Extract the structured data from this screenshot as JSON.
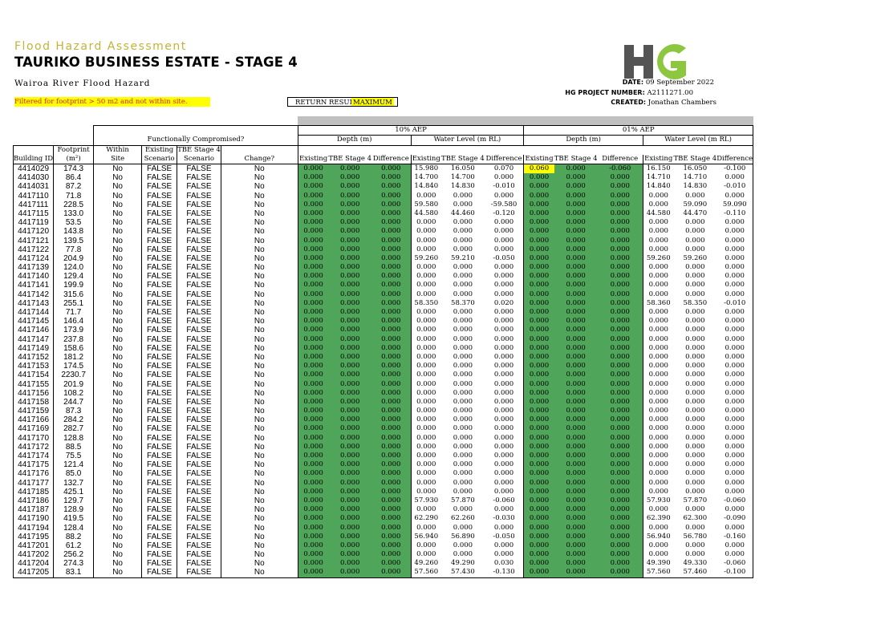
{
  "header": {
    "subtitle": "Flood Hazard Assessment",
    "title": "TAURIKO BUSINESS ESTATE - STAGE 4",
    "river": "Wairoa River Flood Hazard",
    "filter_note": "Filtered for footprint > 50 m2 and not within site.",
    "return_result_label": "RETURN RESULT",
    "return_result_value": "MAXIMUM"
  },
  "meta": {
    "date_label": "DATE:",
    "date_value": "09 September 2022",
    "project_label": "HG PROJECT NUMBER:",
    "project_value": "A2111271.00",
    "created_label": "CREATED:",
    "created_value": "Jonathan Chambers"
  },
  "logo": {
    "text": "HG",
    "colors": {
      "h": "#555555",
      "g": "#8dc63f"
    }
  },
  "colors": {
    "accent_green": "#4fa65a",
    "highlight_yellow": "#ffff00",
    "band_grey": "#c0c0c0",
    "filter_text_red": "#e02020",
    "subtitle_gold": "#c4b23a"
  },
  "table": {
    "aep_10": "10% AEP",
    "aep_1": "01% AEP",
    "func_comp": "Functionally Compromised?",
    "depth": "Depth (m)",
    "wl": "Water Level (m RL)",
    "col": {
      "building_id": "Building ID",
      "footprint_1": "Footprint",
      "footprint_2": "(m²)",
      "within_1": "Within",
      "within_2": "Site",
      "existing_1": "Existing",
      "existing_2": "Scenario",
      "tbe_1": "TBE Stage 4",
      "tbe_2": "Scenario",
      "change": "Change?",
      "existing": "Existing",
      "tbe": "TBE Stage 4",
      "difference": "Difference"
    },
    "rows": [
      [
        "4414029",
        "174.3",
        "No",
        "FALSE",
        "FALSE",
        "No",
        "0.000",
        "0.000",
        "0.000",
        "15.980",
        "16.050",
        "0.070",
        "0.060",
        "0.000",
        "-0.060",
        "16.150",
        "16.050",
        "-0.100"
      ],
      [
        "4414030",
        "86.4",
        "No",
        "FALSE",
        "FALSE",
        "No",
        "0.000",
        "0.000",
        "0.000",
        "14.700",
        "14.700",
        "0.000",
        "0.000",
        "0.000",
        "0.000",
        "14.710",
        "14.710",
        "0.000"
      ],
      [
        "4414031",
        "87.2",
        "No",
        "FALSE",
        "FALSE",
        "No",
        "0.000",
        "0.000",
        "0.000",
        "14.840",
        "14.830",
        "-0.010",
        "0.000",
        "0.000",
        "0.000",
        "14.840",
        "14.830",
        "-0.010"
      ],
      [
        "4417110",
        "71.8",
        "No",
        "FALSE",
        "FALSE",
        "No",
        "0.000",
        "0.000",
        "0.000",
        "0.000",
        "0.000",
        "0.000",
        "0.000",
        "0.000",
        "0.000",
        "0.000",
        "0.000",
        "0.000"
      ],
      [
        "4417111",
        "228.5",
        "No",
        "FALSE",
        "FALSE",
        "No",
        "0.000",
        "0.000",
        "0.000",
        "59.580",
        "0.000",
        "-59.580",
        "0.000",
        "0.000",
        "0.000",
        "0.000",
        "59.090",
        "59.090"
      ],
      [
        "4417115",
        "133.0",
        "No",
        "FALSE",
        "FALSE",
        "No",
        "0.000",
        "0.000",
        "0.000",
        "44.580",
        "44.460",
        "-0.120",
        "0.000",
        "0.000",
        "0.000",
        "44.580",
        "44.470",
        "-0.110"
      ],
      [
        "4417119",
        "53.5",
        "No",
        "FALSE",
        "FALSE",
        "No",
        "0.000",
        "0.000",
        "0.000",
        "0.000",
        "0.000",
        "0.000",
        "0.000",
        "0.000",
        "0.000",
        "0.000",
        "0.000",
        "0.000"
      ],
      [
        "4417120",
        "143.8",
        "No",
        "FALSE",
        "FALSE",
        "No",
        "0.000",
        "0.000",
        "0.000",
        "0.000",
        "0.000",
        "0.000",
        "0.000",
        "0.000",
        "0.000",
        "0.000",
        "0.000",
        "0.000"
      ],
      [
        "4417121",
        "139.5",
        "No",
        "FALSE",
        "FALSE",
        "No",
        "0.000",
        "0.000",
        "0.000",
        "0.000",
        "0.000",
        "0.000",
        "0.000",
        "0.000",
        "0.000",
        "0.000",
        "0.000",
        "0.000"
      ],
      [
        "4417122",
        "77.8",
        "No",
        "FALSE",
        "FALSE",
        "No",
        "0.000",
        "0.000",
        "0.000",
        "0.000",
        "0.000",
        "0.000",
        "0.000",
        "0.000",
        "0.000",
        "0.000",
        "0.000",
        "0.000"
      ],
      [
        "4417124",
        "204.9",
        "No",
        "FALSE",
        "FALSE",
        "No",
        "0.000",
        "0.000",
        "0.000",
        "59.260",
        "59.210",
        "-0.050",
        "0.000",
        "0.000",
        "0.000",
        "59.260",
        "59.260",
        "0.000"
      ],
      [
        "4417139",
        "124.0",
        "No",
        "FALSE",
        "FALSE",
        "No",
        "0.000",
        "0.000",
        "0.000",
        "0.000",
        "0.000",
        "0.000",
        "0.000",
        "0.000",
        "0.000",
        "0.000",
        "0.000",
        "0.000"
      ],
      [
        "4417140",
        "129.4",
        "No",
        "FALSE",
        "FALSE",
        "No",
        "0.000",
        "0.000",
        "0.000",
        "0.000",
        "0.000",
        "0.000",
        "0.000",
        "0.000",
        "0.000",
        "0.000",
        "0.000",
        "0.000"
      ],
      [
        "4417141",
        "199.9",
        "No",
        "FALSE",
        "FALSE",
        "No",
        "0.000",
        "0.000",
        "0.000",
        "0.000",
        "0.000",
        "0.000",
        "0.000",
        "0.000",
        "0.000",
        "0.000",
        "0.000",
        "0.000"
      ],
      [
        "4417142",
        "315.6",
        "No",
        "FALSE",
        "FALSE",
        "No",
        "0.000",
        "0.000",
        "0.000",
        "0.000",
        "0.000",
        "0.000",
        "0.000",
        "0.000",
        "0.000",
        "0.000",
        "0.000",
        "0.000"
      ],
      [
        "4417143",
        "255.1",
        "No",
        "FALSE",
        "FALSE",
        "No",
        "0.000",
        "0.000",
        "0.000",
        "58.350",
        "58.370",
        "0.020",
        "0.000",
        "0.000",
        "0.000",
        "58.360",
        "58.350",
        "-0.010"
      ],
      [
        "4417144",
        "71.7",
        "No",
        "FALSE",
        "FALSE",
        "No",
        "0.000",
        "0.000",
        "0.000",
        "0.000",
        "0.000",
        "0.000",
        "0.000",
        "0.000",
        "0.000",
        "0.000",
        "0.000",
        "0.000"
      ],
      [
        "4417145",
        "146.4",
        "No",
        "FALSE",
        "FALSE",
        "No",
        "0.000",
        "0.000",
        "0.000",
        "0.000",
        "0.000",
        "0.000",
        "0.000",
        "0.000",
        "0.000",
        "0.000",
        "0.000",
        "0.000"
      ],
      [
        "4417146",
        "173.9",
        "No",
        "FALSE",
        "FALSE",
        "No",
        "0.000",
        "0.000",
        "0.000",
        "0.000",
        "0.000",
        "0.000",
        "0.000",
        "0.000",
        "0.000",
        "0.000",
        "0.000",
        "0.000"
      ],
      [
        "4417147",
        "237.8",
        "No",
        "FALSE",
        "FALSE",
        "No",
        "0.000",
        "0.000",
        "0.000",
        "0.000",
        "0.000",
        "0.000",
        "0.000",
        "0.000",
        "0.000",
        "0.000",
        "0.000",
        "0.000"
      ],
      [
        "4417149",
        "158.6",
        "No",
        "FALSE",
        "FALSE",
        "No",
        "0.000",
        "0.000",
        "0.000",
        "0.000",
        "0.000",
        "0.000",
        "0.000",
        "0.000",
        "0.000",
        "0.000",
        "0.000",
        "0.000"
      ],
      [
        "4417152",
        "181.2",
        "No",
        "FALSE",
        "FALSE",
        "No",
        "0.000",
        "0.000",
        "0.000",
        "0.000",
        "0.000",
        "0.000",
        "0.000",
        "0.000",
        "0.000",
        "0.000",
        "0.000",
        "0.000"
      ],
      [
        "4417153",
        "174.5",
        "No",
        "FALSE",
        "FALSE",
        "No",
        "0.000",
        "0.000",
        "0.000",
        "0.000",
        "0.000",
        "0.000",
        "0.000",
        "0.000",
        "0.000",
        "0.000",
        "0.000",
        "0.000"
      ],
      [
        "4417154",
        "2230.7",
        "No",
        "FALSE",
        "FALSE",
        "No",
        "0.000",
        "0.000",
        "0.000",
        "0.000",
        "0.000",
        "0.000",
        "0.000",
        "0.000",
        "0.000",
        "0.000",
        "0.000",
        "0.000"
      ],
      [
        "4417155",
        "201.9",
        "No",
        "FALSE",
        "FALSE",
        "No",
        "0.000",
        "0.000",
        "0.000",
        "0.000",
        "0.000",
        "0.000",
        "0.000",
        "0.000",
        "0.000",
        "0.000",
        "0.000",
        "0.000"
      ],
      [
        "4417156",
        "108.2",
        "No",
        "FALSE",
        "FALSE",
        "No",
        "0.000",
        "0.000",
        "0.000",
        "0.000",
        "0.000",
        "0.000",
        "0.000",
        "0.000",
        "0.000",
        "0.000",
        "0.000",
        "0.000"
      ],
      [
        "4417158",
        "244.7",
        "No",
        "FALSE",
        "FALSE",
        "No",
        "0.000",
        "0.000",
        "0.000",
        "0.000",
        "0.000",
        "0.000",
        "0.000",
        "0.000",
        "0.000",
        "0.000",
        "0.000",
        "0.000"
      ],
      [
        "4417159",
        "87.3",
        "No",
        "FALSE",
        "FALSE",
        "No",
        "0.000",
        "0.000",
        "0.000",
        "0.000",
        "0.000",
        "0.000",
        "0.000",
        "0.000",
        "0.000",
        "0.000",
        "0.000",
        "0.000"
      ],
      [
        "4417166",
        "284.2",
        "No",
        "FALSE",
        "FALSE",
        "No",
        "0.000",
        "0.000",
        "0.000",
        "0.000",
        "0.000",
        "0.000",
        "0.000",
        "0.000",
        "0.000",
        "0.000",
        "0.000",
        "0.000"
      ],
      [
        "4417169",
        "282.7",
        "No",
        "FALSE",
        "FALSE",
        "No",
        "0.000",
        "0.000",
        "0.000",
        "0.000",
        "0.000",
        "0.000",
        "0.000",
        "0.000",
        "0.000",
        "0.000",
        "0.000",
        "0.000"
      ],
      [
        "4417170",
        "128.8",
        "No",
        "FALSE",
        "FALSE",
        "No",
        "0.000",
        "0.000",
        "0.000",
        "0.000",
        "0.000",
        "0.000",
        "0.000",
        "0.000",
        "0.000",
        "0.000",
        "0.000",
        "0.000"
      ],
      [
        "4417172",
        "88.5",
        "No",
        "FALSE",
        "FALSE",
        "No",
        "0.000",
        "0.000",
        "0.000",
        "0.000",
        "0.000",
        "0.000",
        "0.000",
        "0.000",
        "0.000",
        "0.000",
        "0.000",
        "0.000"
      ],
      [
        "4417174",
        "75.5",
        "No",
        "FALSE",
        "FALSE",
        "No",
        "0.000",
        "0.000",
        "0.000",
        "0.000",
        "0.000",
        "0.000",
        "0.000",
        "0.000",
        "0.000",
        "0.000",
        "0.000",
        "0.000"
      ],
      [
        "4417175",
        "121.4",
        "No",
        "FALSE",
        "FALSE",
        "No",
        "0.000",
        "0.000",
        "0.000",
        "0.000",
        "0.000",
        "0.000",
        "0.000",
        "0.000",
        "0.000",
        "0.000",
        "0.000",
        "0.000"
      ],
      [
        "4417176",
        "85.0",
        "No",
        "FALSE",
        "FALSE",
        "No",
        "0.000",
        "0.000",
        "0.000",
        "0.000",
        "0.000",
        "0.000",
        "0.000",
        "0.000",
        "0.000",
        "0.000",
        "0.000",
        "0.000"
      ],
      [
        "4417177",
        "132.7",
        "No",
        "FALSE",
        "FALSE",
        "No",
        "0.000",
        "0.000",
        "0.000",
        "0.000",
        "0.000",
        "0.000",
        "0.000",
        "0.000",
        "0.000",
        "0.000",
        "0.000",
        "0.000"
      ],
      [
        "4417185",
        "425.1",
        "No",
        "FALSE",
        "FALSE",
        "No",
        "0.000",
        "0.000",
        "0.000",
        "0.000",
        "0.000",
        "0.000",
        "0.000",
        "0.000",
        "0.000",
        "0.000",
        "0.000",
        "0.000"
      ],
      [
        "4417186",
        "129.7",
        "No",
        "FALSE",
        "FALSE",
        "No",
        "0.000",
        "0.000",
        "0.000",
        "57.930",
        "57.870",
        "-0.060",
        "0.000",
        "0.000",
        "0.000",
        "57.930",
        "57.870",
        "-0.060"
      ],
      [
        "4417187",
        "128.9",
        "No",
        "FALSE",
        "FALSE",
        "No",
        "0.000",
        "0.000",
        "0.000",
        "0.000",
        "0.000",
        "0.000",
        "0.000",
        "0.000",
        "0.000",
        "0.000",
        "0.000",
        "0.000"
      ],
      [
        "4417190",
        "419.5",
        "No",
        "FALSE",
        "FALSE",
        "No",
        "0.000",
        "0.000",
        "0.000",
        "62.290",
        "62.260",
        "-0.030",
        "0.000",
        "0.000",
        "0.000",
        "62.390",
        "62.300",
        "-0.090"
      ],
      [
        "4417194",
        "128.4",
        "No",
        "FALSE",
        "FALSE",
        "No",
        "0.000",
        "0.000",
        "0.000",
        "0.000",
        "0.000",
        "0.000",
        "0.000",
        "0.000",
        "0.000",
        "0.000",
        "0.000",
        "0.000"
      ],
      [
        "4417195",
        "88.2",
        "No",
        "FALSE",
        "FALSE",
        "No",
        "0.000",
        "0.000",
        "0.000",
        "56.940",
        "56.890",
        "-0.050",
        "0.000",
        "0.000",
        "0.000",
        "56.940",
        "56.780",
        "-0.160"
      ],
      [
        "4417201",
        "61.2",
        "No",
        "FALSE",
        "FALSE",
        "No",
        "0.000",
        "0.000",
        "0.000",
        "0.000",
        "0.000",
        "0.000",
        "0.000",
        "0.000",
        "0.000",
        "0.000",
        "0.000",
        "0.000"
      ],
      [
        "4417202",
        "256.2",
        "No",
        "FALSE",
        "FALSE",
        "No",
        "0.000",
        "0.000",
        "0.000",
        "0.000",
        "0.000",
        "0.000",
        "0.000",
        "0.000",
        "0.000",
        "0.000",
        "0.000",
        "0.000"
      ],
      [
        "4417204",
        "274.3",
        "No",
        "FALSE",
        "FALSE",
        "No",
        "0.000",
        "0.000",
        "0.000",
        "49.260",
        "49.290",
        "0.030",
        "0.000",
        "0.000",
        "0.000",
        "49.390",
        "49.330",
        "-0.060"
      ],
      [
        "4417205",
        "83.1",
        "No",
        "FALSE",
        "FALSE",
        "No",
        "0.000",
        "0.000",
        "0.000",
        "57.560",
        "57.430",
        "-0.130",
        "0.000",
        "0.000",
        "0.000",
        "57.560",
        "57.460",
        "-0.100"
      ]
    ],
    "highlight_cells": [
      {
        "row": 0,
        "col": 12,
        "color": "yellow"
      }
    ]
  }
}
